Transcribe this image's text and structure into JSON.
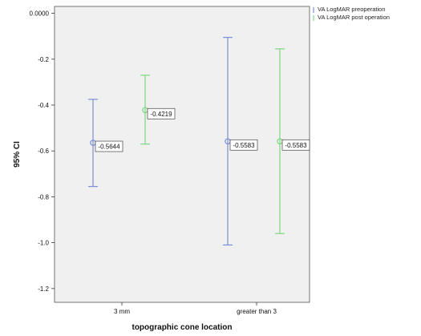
{
  "chart_data": {
    "type": "errorbar",
    "xlabel": "topographic cone location",
    "ylabel": "95% CI",
    "categories": [
      "3 mm",
      "greater than 3"
    ],
    "ylim": [
      -1.26,
      0.03
    ],
    "yticks": [
      "0.0000",
      "-0.2",
      "-0.4",
      "-0.6",
      "-0.8",
      "-1.0",
      "-1.2"
    ],
    "ytick_values": [
      0,
      -0.2,
      -0.4,
      -0.6,
      -0.8,
      -1.0,
      -1.2
    ],
    "grid": false,
    "legend_position": "top-right, outside plot",
    "series": [
      {
        "name": "VA LogMAR preoperation",
        "color": "#7b8ed6",
        "mean": [
          -0.5644,
          -0.5583
        ],
        "lower": [
          -0.755,
          -1.01
        ],
        "upper": [
          -0.375,
          -0.105
        ],
        "labels": [
          "-0.5644",
          "-0.5583"
        ]
      },
      {
        "name": "VA LogMAR post operation",
        "color": "#7fd67f",
        "mean": [
          -0.4219,
          -0.5583
        ],
        "lower": [
          -0.57,
          -0.96
        ],
        "upper": [
          -0.27,
          -0.155
        ],
        "labels": [
          "-0.4219",
          "-0.5583"
        ]
      }
    ]
  }
}
